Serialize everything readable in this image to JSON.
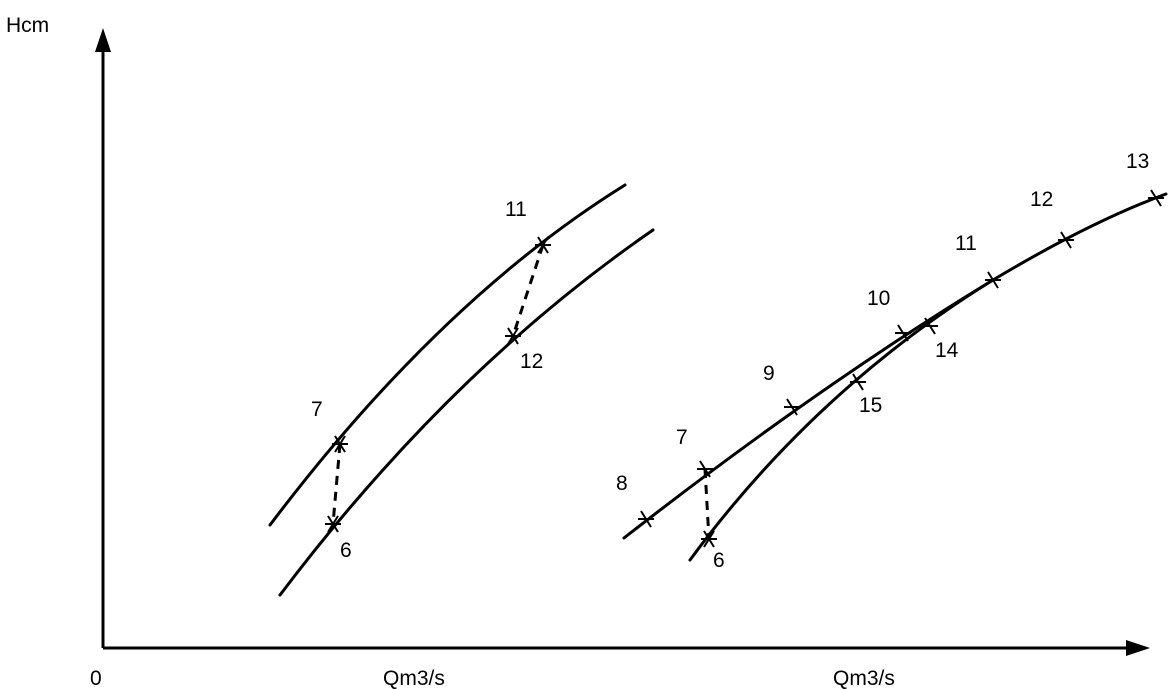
{
  "axes": {
    "y_label": "Hcm",
    "origin_label": "0",
    "x_label_left": "Qm3/s",
    "x_label_right": "Qm3/s"
  },
  "left_diagram": {
    "point_labels": {
      "upper_7": "7",
      "lower_6": "6",
      "upper_11": "11",
      "lower_12": "12"
    }
  },
  "right_diagram": {
    "point_labels": {
      "p8": "8",
      "p7": "7",
      "p6": "6",
      "p9": "9",
      "p15": "15",
      "p10": "10",
      "p14": "14",
      "p11": "11",
      "p12": "12",
      "p13": "13"
    }
  }
}
